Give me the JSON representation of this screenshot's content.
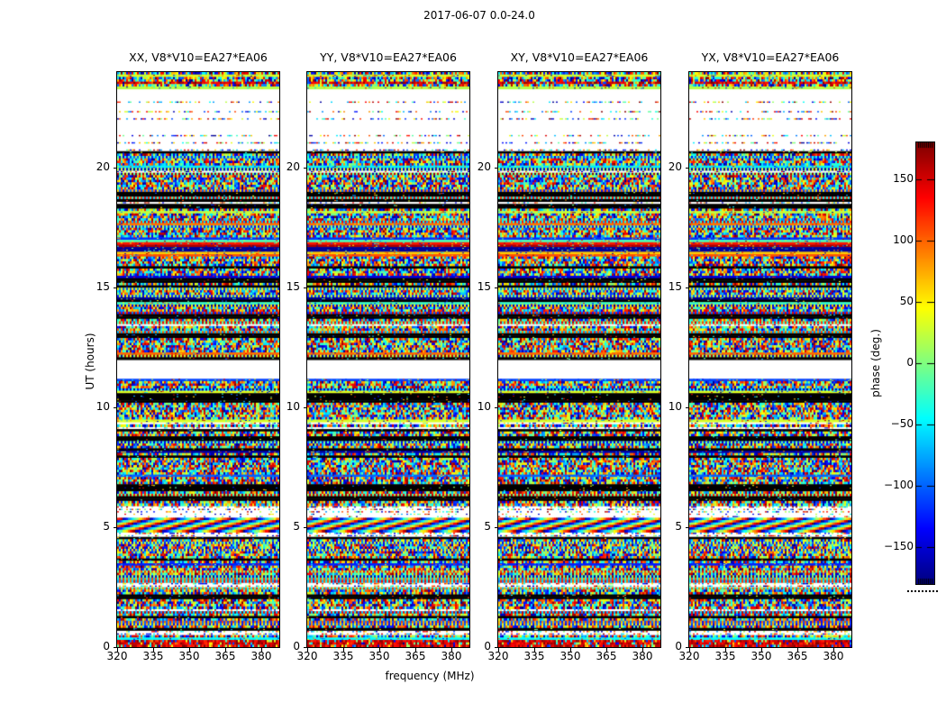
{
  "figure": {
    "title": "2017-06-07 0.0-24.0"
  },
  "chart_data": {
    "type": "heatmap",
    "title": "2017-06-07 0.0-24.0",
    "xlabel": "frequency (MHz)",
    "ylabel": "UT (hours)",
    "x_ticks": [
      320,
      335,
      350,
      365,
      380
    ],
    "y_ticks": [
      0,
      5,
      10,
      15,
      20
    ],
    "xlim": [
      320,
      387.5
    ],
    "ylim": [
      0,
      24
    ],
    "grid": false,
    "legend": "none",
    "panels": [
      {
        "label": "XX, V8*V10=EA27*EA06",
        "seed": 101
      },
      {
        "label": "YY, V8*V10=EA27*EA06",
        "seed": 202
      },
      {
        "label": "XY, V8*V10=EA27*EA06",
        "seed": 303
      },
      {
        "label": "YX, V8*V10=EA27*EA06",
        "seed": 404
      }
    ],
    "structure_seed": 777,
    "colorbar": {
      "label": "phase (deg.)",
      "ticks": [
        150,
        100,
        50,
        0,
        -50,
        -100,
        -150
      ],
      "vmin": -180,
      "vmax": 180,
      "colormap": "jet"
    },
    "values_description": "random interferometric phase, uniform -180..180 deg, per time/frequency cell",
    "bands": [
      [
        0.0,
        0.3,
        "red"
      ],
      [
        0.3,
        0.55,
        "noise"
      ],
      [
        0.55,
        0.68,
        "sparse"
      ],
      [
        0.68,
        1.2,
        "noise"
      ],
      [
        1.2,
        1.32,
        "black"
      ],
      [
        1.32,
        1.48,
        "noise"
      ],
      [
        1.48,
        1.62,
        "sparse"
      ],
      [
        1.62,
        2.05,
        "noise"
      ],
      [
        2.05,
        2.18,
        "black"
      ],
      [
        2.18,
        2.45,
        "noise"
      ],
      [
        2.45,
        2.68,
        "sparse"
      ],
      [
        2.68,
        3.58,
        "noise"
      ],
      [
        3.58,
        3.7,
        "black"
      ],
      [
        3.7,
        4.52,
        "noise"
      ],
      [
        4.52,
        4.64,
        "black"
      ],
      [
        4.64,
        4.8,
        "sparse"
      ],
      [
        4.8,
        5.4,
        "diag"
      ],
      [
        5.4,
        5.58,
        "lines"
      ],
      [
        5.58,
        5.92,
        "sparse"
      ],
      [
        5.92,
        6.12,
        "noise"
      ],
      [
        6.12,
        6.32,
        "black"
      ],
      [
        6.32,
        6.55,
        "noise"
      ],
      [
        6.55,
        6.78,
        "black"
      ],
      [
        6.78,
        7.88,
        "noise"
      ],
      [
        7.88,
        8.02,
        "black"
      ],
      [
        8.02,
        9.0,
        "noise"
      ],
      [
        9.0,
        9.12,
        "black"
      ],
      [
        9.12,
        10.18,
        "noise"
      ],
      [
        10.18,
        10.62,
        "black"
      ],
      [
        10.62,
        11.2,
        "noise"
      ],
      [
        11.2,
        11.55,
        "white"
      ],
      [
        11.55,
        11.62,
        "thinblack"
      ],
      [
        11.62,
        11.98,
        "white"
      ],
      [
        11.98,
        12.06,
        "black"
      ],
      [
        12.06,
        12.98,
        "noise"
      ],
      [
        12.98,
        13.1,
        "black"
      ],
      [
        13.1,
        13.68,
        "noise"
      ],
      [
        13.68,
        13.92,
        "black"
      ],
      [
        13.92,
        15.18,
        "noise"
      ],
      [
        15.18,
        15.45,
        "black"
      ],
      [
        15.45,
        16.3,
        "noise"
      ],
      [
        16.3,
        17.1,
        "lines"
      ],
      [
        17.1,
        18.3,
        "noise"
      ],
      [
        18.3,
        18.52,
        "black"
      ],
      [
        18.52,
        18.76,
        "noise"
      ],
      [
        18.76,
        19.02,
        "black"
      ],
      [
        19.02,
        20.55,
        "noise"
      ],
      [
        20.55,
        20.66,
        "black"
      ],
      [
        20.66,
        20.78,
        "sparse"
      ],
      [
        20.78,
        21.02,
        "white"
      ],
      [
        21.02,
        21.1,
        "sparse"
      ],
      [
        21.1,
        21.34,
        "white"
      ],
      [
        21.34,
        21.42,
        "sparse"
      ],
      [
        21.42,
        21.66,
        "white"
      ],
      [
        21.66,
        21.74,
        "sparse"
      ],
      [
        21.74,
        21.98,
        "white"
      ],
      [
        21.98,
        22.06,
        "sparse"
      ],
      [
        22.06,
        22.34,
        "white"
      ],
      [
        22.34,
        22.42,
        "sparse"
      ],
      [
        22.42,
        22.7,
        "white"
      ],
      [
        22.7,
        22.78,
        "sparse"
      ],
      [
        22.78,
        23.06,
        "white"
      ],
      [
        23.06,
        23.14,
        "sparse"
      ],
      [
        23.14,
        23.32,
        "white"
      ],
      [
        23.32,
        23.48,
        "noise"
      ],
      [
        23.48,
        23.62,
        "red"
      ],
      [
        23.62,
        24.0,
        "noise"
      ]
    ]
  }
}
